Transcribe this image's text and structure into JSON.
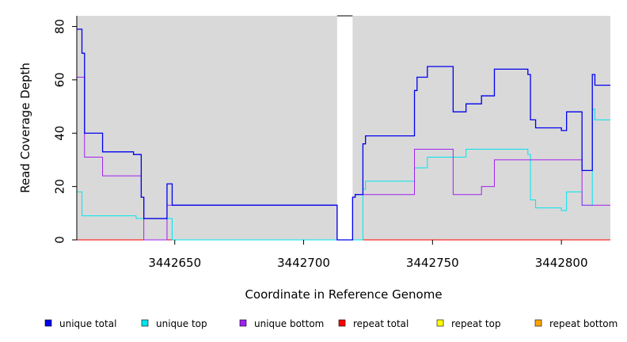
{
  "chart_data": {
    "type": "line",
    "title": "",
    "xlabel": "Coordinate in Reference Genome",
    "ylabel": "Read Coverage Depth",
    "xlim": [
      3442612,
      3442819
    ],
    "ylim": [
      0,
      84
    ],
    "xticks": [
      3442650,
      3442700,
      3442750,
      3442800
    ],
    "yticks": [
      0,
      20,
      40,
      60,
      80
    ],
    "background": "#d9d9d9",
    "gaps": [
      [
        3442713,
        3442719
      ]
    ],
    "legend_position": "bottom",
    "series": [
      {
        "name": "unique total",
        "color": "#0000ee",
        "points": [
          [
            3442612,
            79
          ],
          [
            3442614,
            79
          ],
          [
            3442614,
            70
          ],
          [
            3442615,
            70
          ],
          [
            3442615,
            40
          ],
          [
            3442622,
            40
          ],
          [
            3442622,
            33
          ],
          [
            3442634,
            33
          ],
          [
            3442634,
            32
          ],
          [
            3442637,
            32
          ],
          [
            3442637,
            16
          ],
          [
            3442638,
            16
          ],
          [
            3442638,
            8
          ],
          [
            3442647,
            8
          ],
          [
            3442647,
            21
          ],
          [
            3442649,
            21
          ],
          [
            3442649,
            13
          ],
          [
            3442713,
            13
          ],
          [
            3442713,
            0
          ],
          [
            3442719,
            0
          ],
          [
            3442719,
            16
          ],
          [
            3442720,
            16
          ],
          [
            3442720,
            17
          ],
          [
            3442723,
            17
          ],
          [
            3442723,
            36
          ],
          [
            3442724,
            36
          ],
          [
            3442724,
            39
          ],
          [
            3442743,
            39
          ],
          [
            3442743,
            56
          ],
          [
            3442744,
            56
          ],
          [
            3442744,
            61
          ],
          [
            3442748,
            61
          ],
          [
            3442748,
            65
          ],
          [
            3442758,
            65
          ],
          [
            3442758,
            48
          ],
          [
            3442763,
            48
          ],
          [
            3442763,
            51
          ],
          [
            3442769,
            51
          ],
          [
            3442769,
            54
          ],
          [
            3442774,
            54
          ],
          [
            3442774,
            64
          ],
          [
            3442787,
            64
          ],
          [
            3442787,
            62
          ],
          [
            3442788,
            62
          ],
          [
            3442788,
            45
          ],
          [
            3442790,
            45
          ],
          [
            3442790,
            42
          ],
          [
            3442800,
            42
          ],
          [
            3442800,
            41
          ],
          [
            3442802,
            41
          ],
          [
            3442802,
            48
          ],
          [
            3442808,
            48
          ],
          [
            3442808,
            26
          ],
          [
            3442812,
            26
          ],
          [
            3442812,
            62
          ],
          [
            3442813,
            62
          ],
          [
            3442813,
            58
          ],
          [
            3442819,
            58
          ]
        ]
      },
      {
        "name": "unique top",
        "color": "#00e5ee",
        "points": [
          [
            3442612,
            18
          ],
          [
            3442614,
            18
          ],
          [
            3442614,
            9
          ],
          [
            3442635,
            9
          ],
          [
            3442635,
            8
          ],
          [
            3442649,
            8
          ],
          [
            3442649,
            0
          ],
          [
            3442713,
            0
          ],
          [
            3442713,
            0
          ],
          [
            3442719,
            0
          ],
          [
            3442719,
            0
          ],
          [
            3442723,
            0
          ],
          [
            3442723,
            19
          ],
          [
            3442724,
            19
          ],
          [
            3442724,
            22
          ],
          [
            3442743,
            22
          ],
          [
            3442743,
            27
          ],
          [
            3442748,
            27
          ],
          [
            3442748,
            31
          ],
          [
            3442763,
            31
          ],
          [
            3442763,
            34
          ],
          [
            3442787,
            34
          ],
          [
            3442787,
            32
          ],
          [
            3442788,
            32
          ],
          [
            3442788,
            15
          ],
          [
            3442790,
            15
          ],
          [
            3442790,
            12
          ],
          [
            3442800,
            12
          ],
          [
            3442800,
            11
          ],
          [
            3442802,
            11
          ],
          [
            3442802,
            18
          ],
          [
            3442808,
            18
          ],
          [
            3442808,
            13
          ],
          [
            3442812,
            13
          ],
          [
            3442812,
            49
          ],
          [
            3442813,
            49
          ],
          [
            3442813,
            45
          ],
          [
            3442819,
            45
          ]
        ]
      },
      {
        "name": "unique bottom",
        "color": "#a020f0",
        "points": [
          [
            3442612,
            61
          ],
          [
            3442615,
            61
          ],
          [
            3442615,
            31
          ],
          [
            3442622,
            31
          ],
          [
            3442622,
            24
          ],
          [
            3442637,
            24
          ],
          [
            3442637,
            16
          ],
          [
            3442638,
            16
          ],
          [
            3442638,
            0
          ],
          [
            3442647,
            0
          ],
          [
            3442647,
            13
          ],
          [
            3442713,
            13
          ],
          [
            3442713,
            0
          ],
          [
            3442719,
            0
          ],
          [
            3442719,
            16
          ],
          [
            3442720,
            16
          ],
          [
            3442720,
            17
          ],
          [
            3442743,
            17
          ],
          [
            3442743,
            34
          ],
          [
            3442758,
            34
          ],
          [
            3442758,
            17
          ],
          [
            3442769,
            17
          ],
          [
            3442769,
            20
          ],
          [
            3442774,
            20
          ],
          [
            3442774,
            30
          ],
          [
            3442808,
            30
          ],
          [
            3442808,
            13
          ],
          [
            3442819,
            13
          ]
        ]
      },
      {
        "name": "repeat total",
        "color": "#ff0000",
        "points": [
          [
            3442612,
            0
          ],
          [
            3442713,
            0
          ],
          [
            3442719,
            0
          ],
          [
            3442819,
            0
          ]
        ]
      },
      {
        "name": "repeat top",
        "color": "#ffff00",
        "points": [
          [
            3442612,
            0
          ],
          [
            3442713,
            0
          ],
          [
            3442719,
            0
          ],
          [
            3442819,
            0
          ]
        ]
      },
      {
        "name": "repeat bottom",
        "color": "#ffa500",
        "points": [
          [
            3442612,
            0
          ],
          [
            3442713,
            0
          ],
          [
            3442719,
            0
          ],
          [
            3442819,
            0
          ]
        ]
      }
    ]
  }
}
